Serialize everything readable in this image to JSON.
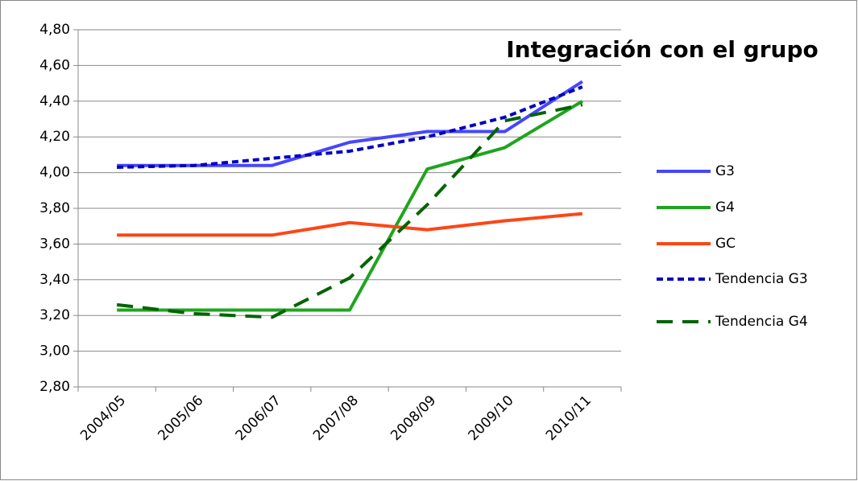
{
  "chart_data": {
    "type": "line",
    "title": "Integración con el grupo",
    "categories": [
      "2004/05",
      "2005/06",
      "2006/07",
      "2007/08",
      "2008/09",
      "2009/10",
      "2010/11"
    ],
    "series": [
      {
        "name": "G3",
        "color": "#4646ff",
        "dash": "solid",
        "values": [
          4.04,
          4.04,
          4.04,
          4.17,
          4.23,
          4.23,
          4.51
        ]
      },
      {
        "name": "G4",
        "color": "#1ea51e",
        "dash": "solid",
        "values": [
          3.23,
          3.23,
          3.23,
          3.23,
          4.02,
          4.14,
          4.4
        ]
      },
      {
        "name": "GC",
        "color": "#ff4514",
        "dash": "solid",
        "values": [
          3.65,
          3.65,
          3.65,
          3.72,
          3.68,
          3.73,
          3.77
        ]
      },
      {
        "name": "Tendencia G3",
        "color": "#0000c0",
        "dash": "short",
        "values": [
          4.03,
          4.04,
          4.08,
          4.12,
          4.2,
          4.31,
          4.48
        ]
      },
      {
        "name": "Tendencia G4",
        "color": "#006400",
        "dash": "long",
        "values": [
          3.26,
          3.21,
          3.19,
          3.41,
          3.82,
          4.29,
          4.38
        ]
      }
    ],
    "ylim": [
      2.8,
      4.8
    ],
    "yticks": [
      {
        "value": 2.8,
        "label": "2,80"
      },
      {
        "value": 3.0,
        "label": "3,00"
      },
      {
        "value": 3.2,
        "label": "3,20"
      },
      {
        "value": 3.4,
        "label": "3,40"
      },
      {
        "value": 3.6,
        "label": "3,60"
      },
      {
        "value": 3.8,
        "label": "3,80"
      },
      {
        "value": 4.0,
        "label": "4,00"
      },
      {
        "value": 4.2,
        "label": "4,20"
      },
      {
        "value": 4.4,
        "label": "4,40"
      },
      {
        "value": 4.6,
        "label": "4,60"
      },
      {
        "value": 4.8,
        "label": "4,80"
      }
    ],
    "grid": true,
    "legend": "right"
  }
}
